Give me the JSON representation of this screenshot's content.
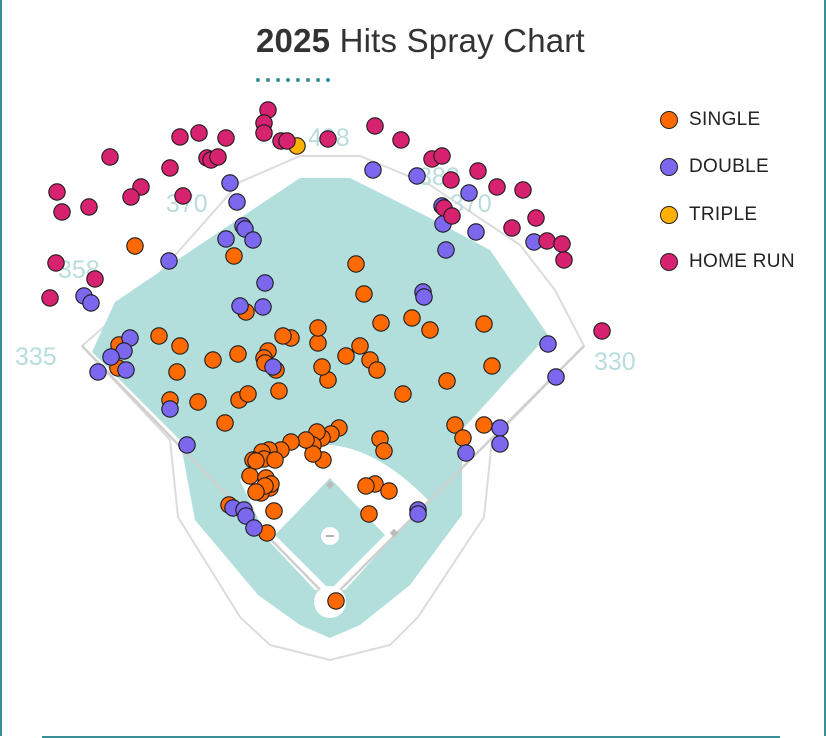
{
  "title": {
    "year": "2025",
    "rest": "Hits Spray Chart"
  },
  "legend": [
    {
      "key": "single",
      "label": "SINGLE",
      "color": "#ff6a00"
    },
    {
      "key": "double",
      "label": "DOUBLE",
      "color": "#7b68ee"
    },
    {
      "key": "triple",
      "label": "TRIPLE",
      "color": "#ffb000"
    },
    {
      "key": "hr",
      "label": "HOME RUN",
      "color": "#d6226f"
    }
  ],
  "field": {
    "grass_color": "#b2dfdc",
    "distances": {
      "lf": "335",
      "lc": "358",
      "lcc": "370",
      "cf": "408",
      "rcc": "382",
      "rc": "370",
      "rf": "330"
    }
  },
  "chart_data": {
    "type": "scatter",
    "title": "2025 Hits Spray Chart",
    "xlabel": "",
    "ylabel": "",
    "legend": [
      "SINGLE",
      "DOUBLE",
      "TRIPLE",
      "HOME RUN"
    ],
    "series": [
      {
        "name": "SINGLE",
        "points": [
          [
            135,
            246
          ],
          [
            234,
            256
          ],
          [
            356,
            264
          ],
          [
            364,
            294
          ],
          [
            246,
            312
          ],
          [
            381,
            323
          ],
          [
            412,
            318
          ],
          [
            430,
            330
          ],
          [
            484,
            324
          ],
          [
            492,
            366
          ],
          [
            447,
            381
          ],
          [
            403,
            394
          ],
          [
            328,
            380
          ],
          [
            322,
            367
          ],
          [
            346,
            356
          ],
          [
            360,
            346
          ],
          [
            370,
            360
          ],
          [
            377,
            370
          ],
          [
            318,
            343
          ],
          [
            318,
            328
          ],
          [
            291,
            338
          ],
          [
            283,
            336
          ],
          [
            268,
            351
          ],
          [
            264,
            358
          ],
          [
            265,
            363
          ],
          [
            276,
            370
          ],
          [
            279,
            391
          ],
          [
            238,
            354
          ],
          [
            213,
            360
          ],
          [
            180,
            346
          ],
          [
            159,
            336
          ],
          [
            177,
            372
          ],
          [
            170,
            400
          ],
          [
            198,
            402
          ],
          [
            239,
            400
          ],
          [
            248,
            394
          ],
          [
            225,
            423
          ],
          [
            119,
            345
          ],
          [
            118,
            368
          ],
          [
            455,
            425
          ],
          [
            463,
            438
          ],
          [
            484,
            425
          ],
          [
            380,
            439
          ],
          [
            384,
            451
          ],
          [
            375,
            484
          ],
          [
            366,
            486
          ],
          [
            389,
            491
          ],
          [
            369,
            514
          ],
          [
            339,
            428
          ],
          [
            331,
            434
          ],
          [
            322,
            438
          ],
          [
            317,
            432
          ],
          [
            313,
            445
          ],
          [
            323,
            460
          ],
          [
            313,
            454
          ],
          [
            306,
            440
          ],
          [
            291,
            442
          ],
          [
            281,
            450
          ],
          [
            269,
            450
          ],
          [
            262,
            452
          ],
          [
            264,
            459
          ],
          [
            253,
            460
          ],
          [
            250,
            476
          ],
          [
            256,
            461
          ],
          [
            275,
            460
          ],
          [
            266,
            478
          ],
          [
            270,
            488
          ],
          [
            261,
            493
          ],
          [
            271,
            484
          ],
          [
            265,
            486
          ],
          [
            256,
            492
          ],
          [
            274,
            511
          ],
          [
            267,
            533
          ],
          [
            229,
            505
          ],
          [
            336,
            601
          ]
        ]
      },
      {
        "name": "DOUBLE",
        "points": [
          [
            230,
            183
          ],
          [
            237,
            202
          ],
          [
            243,
            226
          ],
          [
            245,
            229
          ],
          [
            226,
            239
          ],
          [
            253,
            240
          ],
          [
            169,
            261
          ],
          [
            265,
            283
          ],
          [
            240,
            306
          ],
          [
            263,
            307
          ],
          [
            423,
            292
          ],
          [
            424,
            297
          ],
          [
            373,
            170
          ],
          [
            417,
            176
          ],
          [
            442,
            206
          ],
          [
            469,
            193
          ],
          [
            443,
            224
          ],
          [
            476,
            232
          ],
          [
            446,
            250
          ],
          [
            534,
            242
          ],
          [
            84,
            296
          ],
          [
            91,
            303
          ],
          [
            130,
            338
          ],
          [
            124,
            351
          ],
          [
            111,
            357
          ],
          [
            126,
            370
          ],
          [
            98,
            372
          ],
          [
            548,
            344
          ],
          [
            556,
            377
          ],
          [
            500,
            428
          ],
          [
            500,
            444
          ],
          [
            466,
            453
          ],
          [
            418,
            510
          ],
          [
            418,
            514
          ],
          [
            170,
            409
          ],
          [
            187,
            445
          ],
          [
            233,
            508
          ],
          [
            244,
            510
          ],
          [
            246,
            516
          ],
          [
            254,
            528
          ],
          [
            273,
            367
          ]
        ]
      },
      {
        "name": "TRIPLE",
        "points": [
          [
            297,
            146
          ]
        ]
      },
      {
        "name": "HOME RUN",
        "points": [
          [
            268,
            110
          ],
          [
            264,
            123
          ],
          [
            264,
            133
          ],
          [
            281,
            141
          ],
          [
            287,
            141
          ],
          [
            328,
            139
          ],
          [
            375,
            126
          ],
          [
            401,
            140
          ],
          [
            180,
            137
          ],
          [
            199,
            133
          ],
          [
            226,
            138
          ],
          [
            207,
            158
          ],
          [
            211,
            160
          ],
          [
            218,
            157
          ],
          [
            110,
            157
          ],
          [
            170,
            168
          ],
          [
            141,
            187
          ],
          [
            131,
            197
          ],
          [
            183,
            196
          ],
          [
            57,
            192
          ],
          [
            62,
            212
          ],
          [
            89,
            207
          ],
          [
            56,
            263
          ],
          [
            95,
            279
          ],
          [
            50,
            298
          ],
          [
            432,
            159
          ],
          [
            442,
            156
          ],
          [
            451,
            180
          ],
          [
            478,
            171
          ],
          [
            497,
            187
          ],
          [
            523,
            190
          ],
          [
            444,
            208
          ],
          [
            452,
            216
          ],
          [
            512,
            228
          ],
          [
            536,
            218
          ],
          [
            547,
            241
          ],
          [
            562,
            244
          ],
          [
            564,
            260
          ],
          [
            602,
            331
          ]
        ]
      }
    ]
  }
}
